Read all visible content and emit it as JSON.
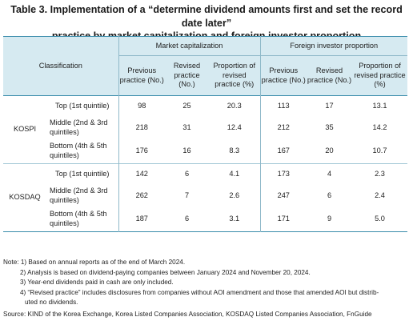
{
  "title": {
    "line1": "Table 3. Implementation of a “determine dividend amounts first and set the record date later”",
    "line2": "practice by market capitalization and foreign investor proportion"
  },
  "table": {
    "classification_label": "Classification",
    "group_headers": [
      "Market capitalization",
      "Foreign investor proportion"
    ],
    "sub_headers": [
      "Previous practice (No.)",
      "Revised practice (No.)",
      "Proportion of revised practice (%)",
      "Previous practice (No.)",
      "Revised practice (No.)",
      "Proportion of revised practice (%)"
    ],
    "markets": [
      {
        "name": "KOSPI",
        "rows": [
          {
            "category": "Top (1st quintile)",
            "values": [
              "98",
              "25",
              "20.3",
              "113",
              "17",
              "13.1"
            ]
          },
          {
            "category": "Middle (2nd & 3rd quintiles)",
            "values": [
              "218",
              "31",
              "12.4",
              "212",
              "35",
              "14.2"
            ]
          },
          {
            "category": "Bottom (4th & 5th quintiles)",
            "values": [
              "176",
              "16",
              "8.3",
              "167",
              "20",
              "10.7"
            ]
          }
        ]
      },
      {
        "name": "KOSDAQ",
        "rows": [
          {
            "category": "Top (1st quintile)",
            "values": [
              "142",
              "6",
              "4.1",
              "173",
              "4",
              "2.3"
            ]
          },
          {
            "category": "Middle (2nd & 3rd quintiles)",
            "values": [
              "262",
              "7",
              "2.6",
              "247",
              "6",
              "2.4"
            ]
          },
          {
            "category": "Bottom (4th & 5th quintiles)",
            "values": [
              "187",
              "6",
              "3.1",
              "171",
              "9",
              "5.0"
            ]
          }
        ]
      }
    ]
  },
  "notes": {
    "n1": "Note: 1) Based on annual reports as of the end of March 2024.",
    "n2": "2) Analysis is based on dividend-paying companies between January 2024 and November 20, 2024.",
    "n3": "3) Year-end dividends paid in cash are only included.",
    "n4a": "4) “Revised practice” includes disclosures from companies without AOI amendment and those that amended AOI but distrib-",
    "n4b": "uted no dividends.",
    "source": "Source: KIND of the Korea Exchange, Korea Listed Companies Association, KOSDAQ Listed Companies Association, FnGuide"
  },
  "colors": {
    "header_bg": "#d6eaf1",
    "rule": "#3a8cab",
    "grid": "#8fb9c9"
  }
}
